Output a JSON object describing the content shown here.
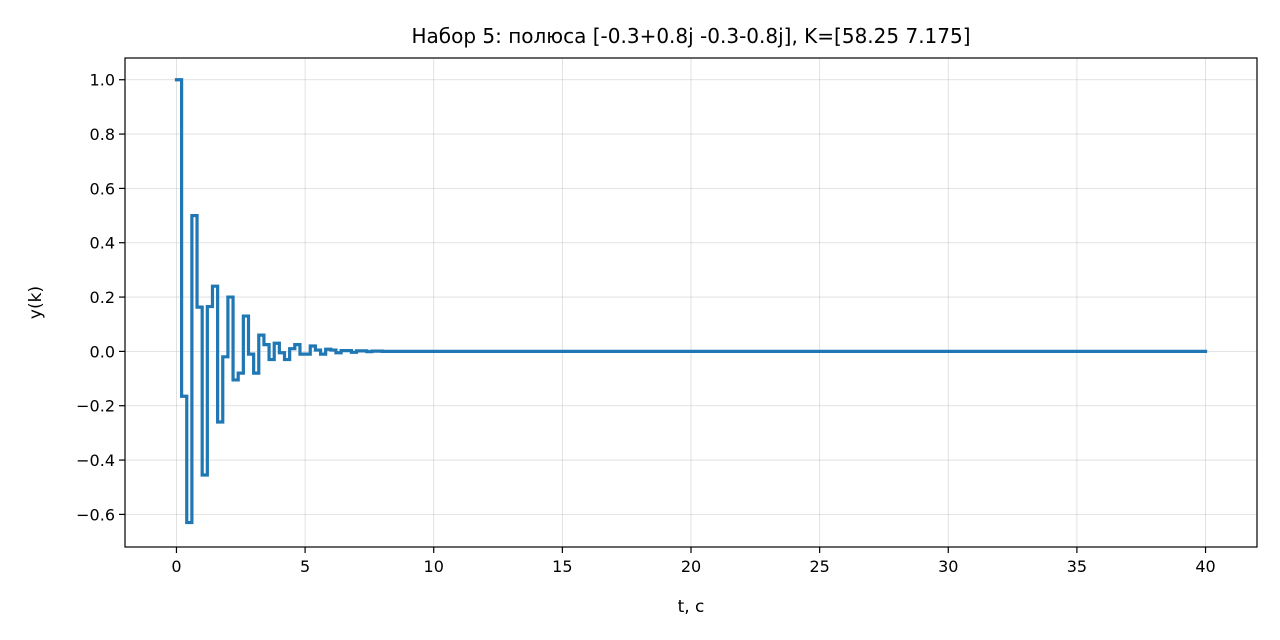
{
  "chart_data": {
    "type": "line",
    "step": "post",
    "title": "Набор 5: полюса [-0.3+0.8j -0.3-0.8j], K=[58.25   7.175]",
    "xlabel": "t, с",
    "ylabel": "y(k)",
    "xlim": [
      -2,
      42
    ],
    "ylim": [
      -0.72,
      1.08
    ],
    "grid": true,
    "color": "#1f77b4",
    "x_ticks": [
      0,
      5,
      10,
      15,
      20,
      25,
      30,
      35,
      40
    ],
    "x_tick_labels": [
      "0",
      "5",
      "10",
      "15",
      "20",
      "25",
      "30",
      "35",
      "40"
    ],
    "y_ticks": [
      -0.6,
      -0.4,
      -0.2,
      0.0,
      0.2,
      0.4,
      0.6,
      0.8,
      1.0
    ],
    "y_tick_labels": [
      "−0.6",
      "−0.4",
      "−0.2",
      "0.0",
      "0.2",
      "0.4",
      "0.6",
      "0.8",
      "1.0"
    ],
    "series": [
      {
        "x": [
          0,
          0.2,
          0.4,
          0.6,
          0.8,
          1.0,
          1.2,
          1.4,
          1.6,
          1.8,
          2.0,
          2.2,
          2.4,
          2.6,
          2.8,
          3.0,
          3.2,
          3.4,
          3.6,
          3.8,
          4.0,
          4.2,
          4.4,
          4.6,
          4.8,
          5.0,
          5.2,
          5.4,
          5.6,
          5.8,
          6.0,
          6.2,
          6.4,
          6.6,
          6.8,
          7.0,
          7.2,
          7.4,
          7.6,
          7.8,
          8.0,
          40.0
        ],
        "y": [
          1.0,
          -0.165,
          -0.63,
          0.5,
          0.163,
          -0.455,
          0.165,
          0.24,
          -0.26,
          -0.02,
          0.2,
          -0.105,
          -0.08,
          0.13,
          -0.01,
          -0.08,
          0.06,
          0.025,
          -0.03,
          0.03,
          -0.005,
          -0.03,
          0.01,
          0.025,
          -0.01,
          -0.01,
          0.02,
          0.005,
          -0.01,
          0.008,
          0.005,
          -0.005,
          0.003,
          0.003,
          -0.003,
          0.002,
          0.002,
          -0.001,
          0.001,
          0.001,
          0.0,
          0.0
        ]
      }
    ]
  }
}
